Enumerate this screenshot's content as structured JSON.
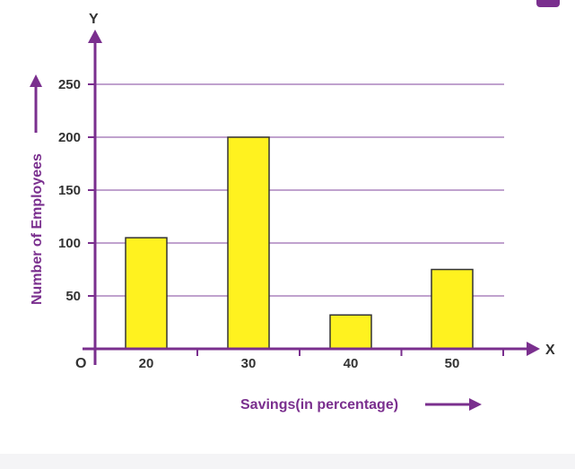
{
  "chart_data": {
    "type": "bar",
    "categories": [
      "20",
      "30",
      "40",
      "50"
    ],
    "values": [
      105,
      200,
      32,
      75
    ],
    "xlabel": "Savings(in percentage)",
    "ylabel": "Number of Employees",
    "x_axis_letter": "X",
    "y_axis_letter": "Y",
    "origin_label": "O",
    "yticks": [
      50,
      100,
      150,
      200,
      250
    ],
    "ylim": [
      0,
      290
    ],
    "grid": true,
    "colors": {
      "bar_fill": "#fff21f",
      "bar_stroke": "#333333",
      "axis": "#7a2f8e",
      "grid": "#9b6bb0",
      "text": "#333333"
    }
  }
}
